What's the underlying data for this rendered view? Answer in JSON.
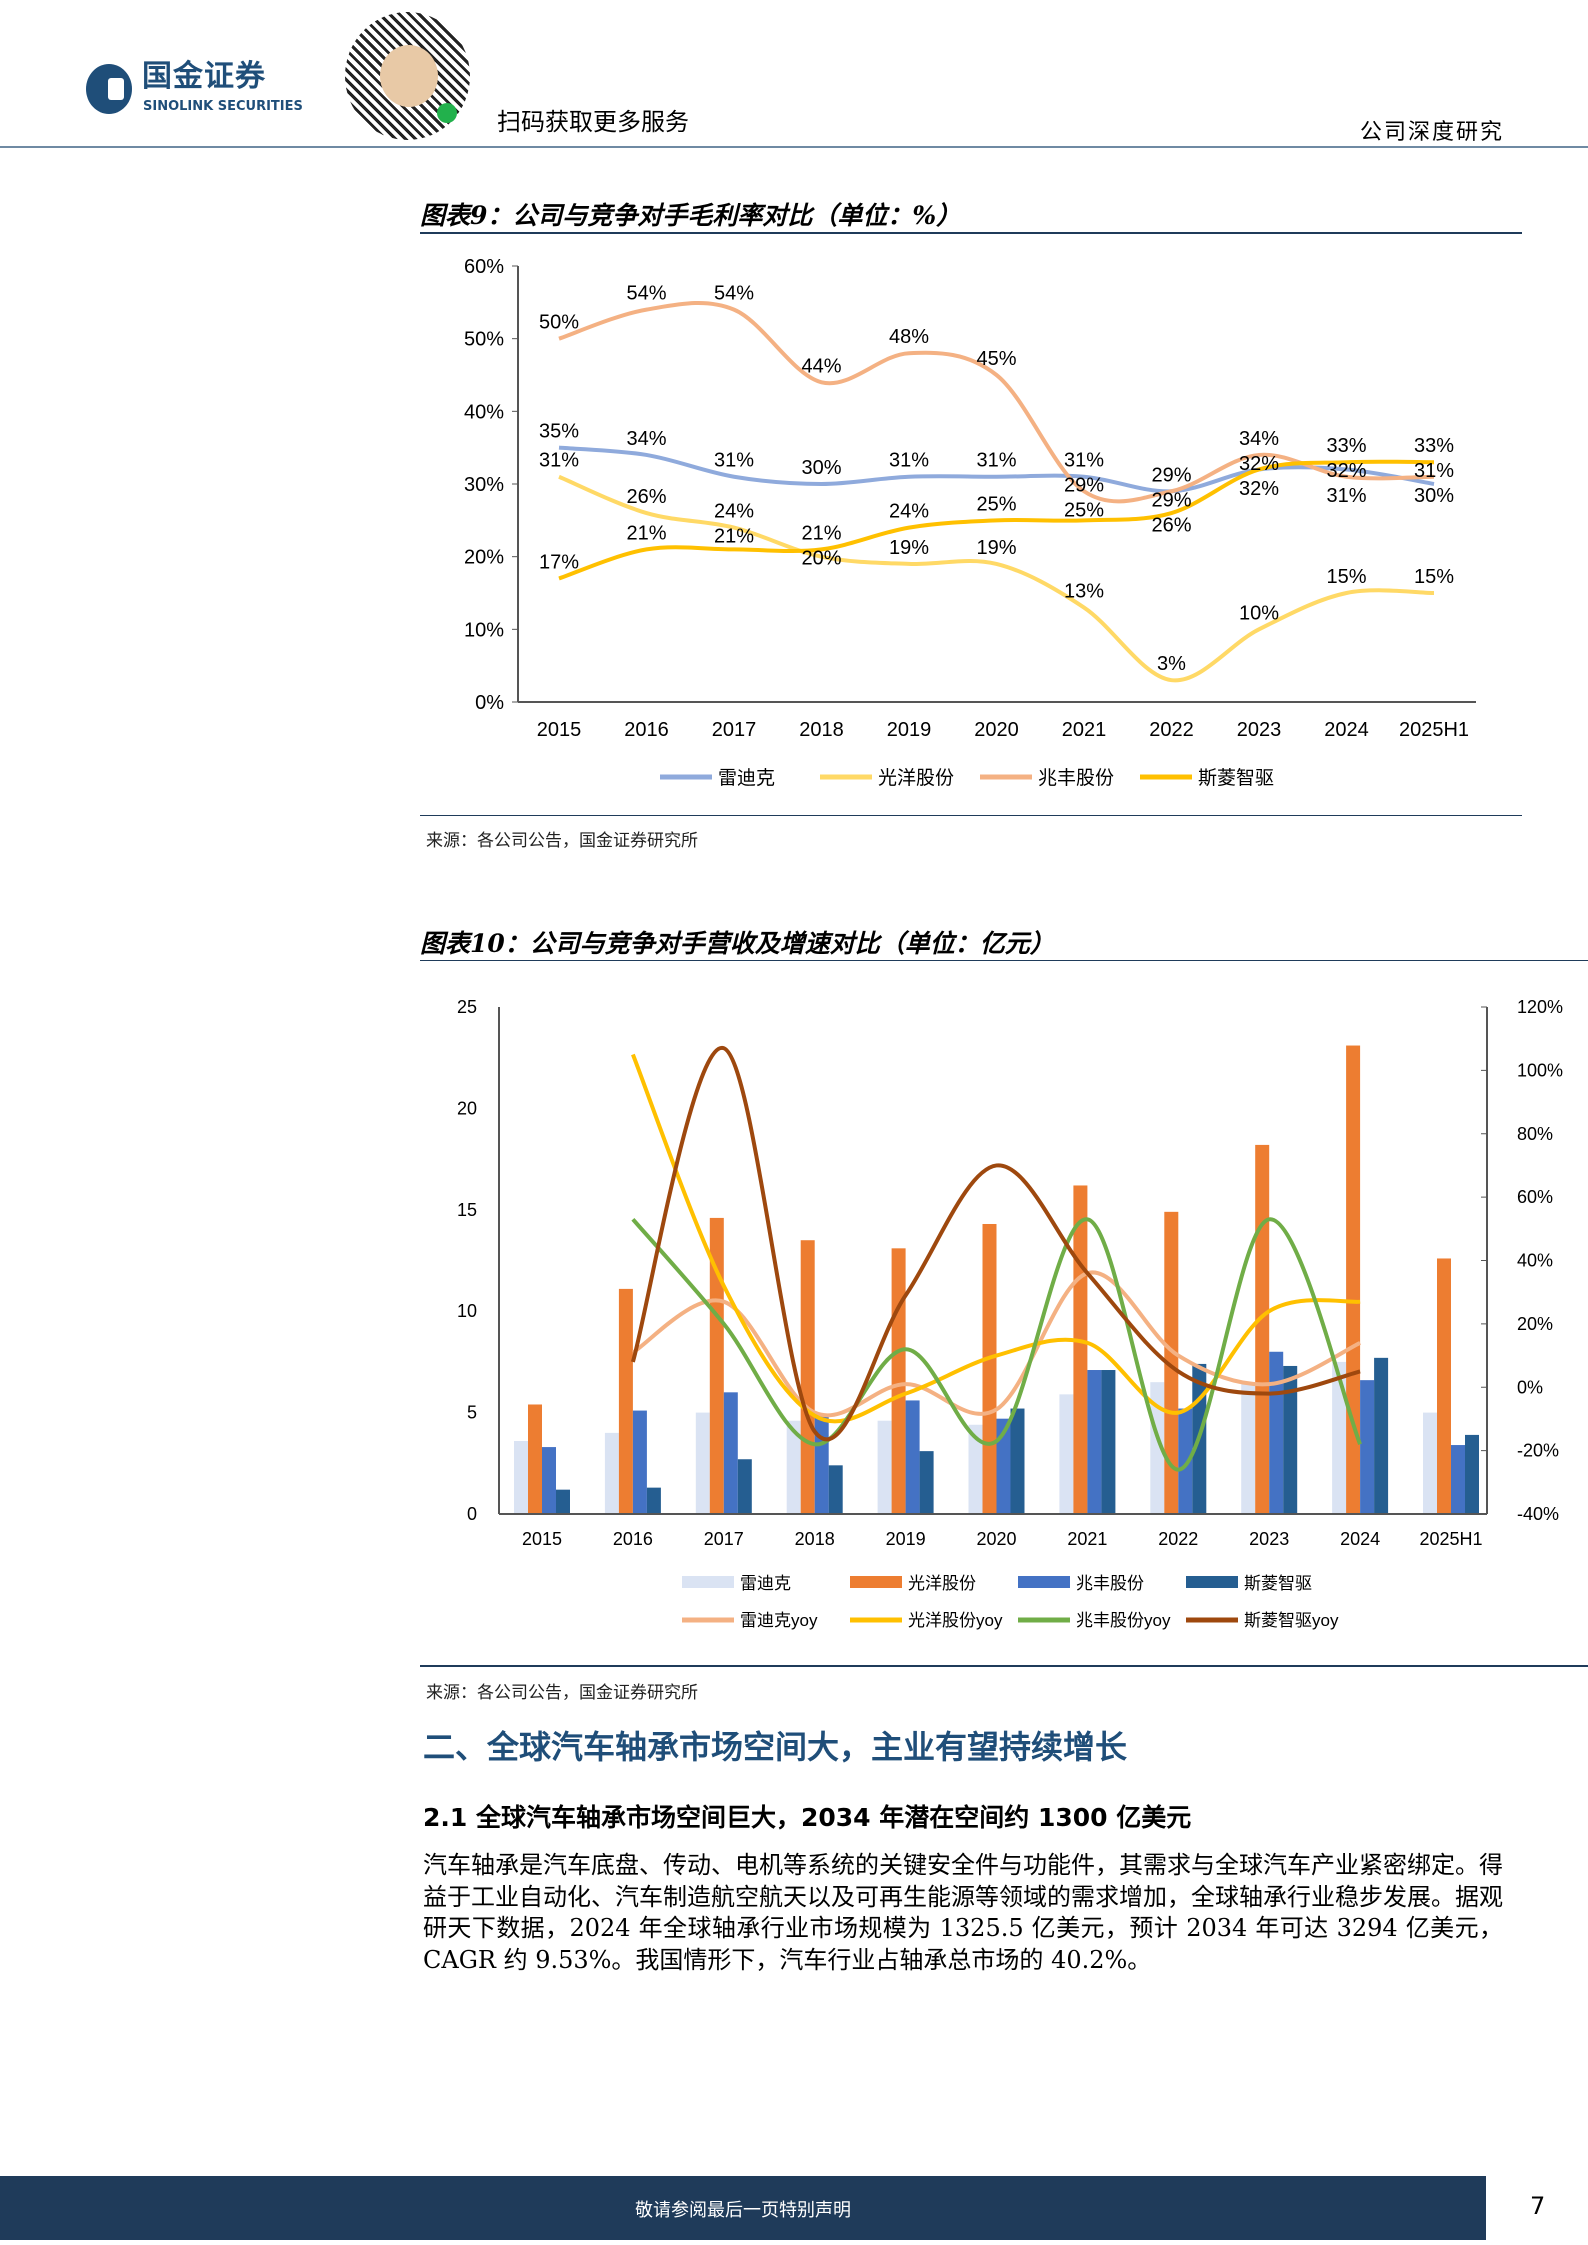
{
  "header": {
    "logo_cn": "国金证券",
    "logo_en": "SINOLINK SECURITIES",
    "scan_text": "扫码获取更多服务",
    "doc_type": "公司深度研究"
  },
  "figure9": {
    "title": "图表9：公司与竞争对手毛利率对比（单位：%）",
    "source": "来源：各公司公告，国金证券研究所"
  },
  "figure10": {
    "title": "图表10：公司与竞争对手营收及增速对比（单位：亿元）",
    "source": "来源：各公司公告，国金证券研究所"
  },
  "chart_data": [
    {
      "type": "line",
      "categories": [
        "2015",
        "2016",
        "2017",
        "2018",
        "2019",
        "2020",
        "2021",
        "2022",
        "2023",
        "2024",
        "2025H1"
      ],
      "ylim": [
        0,
        60
      ],
      "yticks": [
        "0%",
        "10%",
        "20%",
        "30%",
        "40%",
        "50%",
        "60%"
      ],
      "unit": "%",
      "grid": false,
      "legend_placement": "bottom",
      "series": [
        {
          "name": "雷迪克",
          "color": "#8faadc",
          "values": [
            35,
            34,
            31,
            30,
            31,
            31,
            31,
            29,
            32,
            32,
            30
          ]
        },
        {
          "name": "光洋股份",
          "color": "#ffd966",
          "values": [
            31,
            26,
            24,
            20,
            19,
            19,
            13,
            3,
            10,
            15,
            15
          ]
        },
        {
          "name": "兆丰股份",
          "color": "#f4b183",
          "values": [
            50,
            54,
            54,
            44,
            48,
            45,
            29,
            29,
            34,
            31,
            31
          ]
        },
        {
          "name": "斯菱智驱",
          "color": "#ffc000",
          "values": [
            17,
            21,
            21,
            21,
            24,
            25,
            25,
            26,
            32,
            33,
            33
          ]
        }
      ]
    },
    {
      "type": "bar",
      "categories": [
        "2015",
        "2016",
        "2017",
        "2018",
        "2019",
        "2020",
        "2021",
        "2022",
        "2023",
        "2024",
        "2025H1"
      ],
      "ylim": [
        0,
        25
      ],
      "yticks": [
        "0",
        "5",
        "10",
        "15",
        "20",
        "25"
      ],
      "y2lim": [
        -40,
        120
      ],
      "y2ticks": [
        "-40%",
        "-20%",
        "0%",
        "20%",
        "40%",
        "60%",
        "80%",
        "100%",
        "120%"
      ],
      "grid": false,
      "legend_placement": "bottom",
      "bar_series": [
        {
          "name": "雷迪克",
          "color": "#dae3f3",
          "values": [
            3.6,
            4.0,
            5.0,
            4.6,
            4.6,
            4.4,
            5.9,
            6.5,
            6.4,
            7.5,
            5.0
          ]
        },
        {
          "name": "光洋股份",
          "color": "#ed7d31",
          "values": [
            5.4,
            11.1,
            14.6,
            13.5,
            13.1,
            14.3,
            16.2,
            14.9,
            18.2,
            23.1,
            12.6
          ]
        },
        {
          "name": "兆丰股份",
          "color": "#4472c4",
          "values": [
            3.3,
            5.1,
            6.0,
            4.8,
            5.6,
            4.7,
            7.1,
            5.2,
            8.0,
            6.6,
            3.4
          ]
        },
        {
          "name": "斯菱智驱",
          "color": "#255e91",
          "values": [
            1.2,
            1.3,
            2.7,
            2.4,
            3.1,
            5.2,
            7.1,
            7.4,
            7.3,
            7.7,
            3.9
          ]
        }
      ],
      "line_series": [
        {
          "name": "雷迪克yoy",
          "color": "#f4b183",
          "values": [
            null,
            11,
            27,
            -8,
            1,
            -7,
            36,
            10,
            1,
            14,
            null
          ]
        },
        {
          "name": "光洋股份yoy",
          "color": "#ffc000",
          "values": [
            null,
            105,
            32,
            -9,
            -2,
            10,
            14,
            -8,
            24,
            27,
            null
          ]
        },
        {
          "name": "兆丰股份yoy",
          "color": "#70ad47",
          "values": [
            null,
            53,
            20,
            -18,
            12,
            -17,
            53,
            -26,
            53,
            -18,
            null
          ]
        },
        {
          "name": "斯菱智驱yoy",
          "color": "#9e480e",
          "values": [
            null,
            8,
            107,
            -14,
            29,
            70,
            36,
            5,
            -2,
            5,
            null
          ]
        }
      ]
    }
  ],
  "section": {
    "title": "二、全球汽车轴承市场空间大，主业有望持续增长",
    "subtitle": "2.1  全球汽车轴承市场空间巨大，2034 年潜在空间约 1300 亿美元",
    "paragraph": "汽车轴承是汽车底盘、传动、电机等系统的关键安全件与功能件，其需求与全球汽车产业紧密绑定。得益于工业自动化、汽车制造航空航天以及可再生能源等领域的需求增加，全球轴承行业稳步发展。据观研天下数据，2024 年全球轴承行业市场规模为 1325.5 亿美元，预计 2034 年可达 3294 亿美元，CAGR 约 9.53%。我国情形下，汽车行业占轴承总市场的 40.2%。"
  },
  "footer": {
    "notice": "敬请参阅最后一页特别声明",
    "page": "7"
  }
}
